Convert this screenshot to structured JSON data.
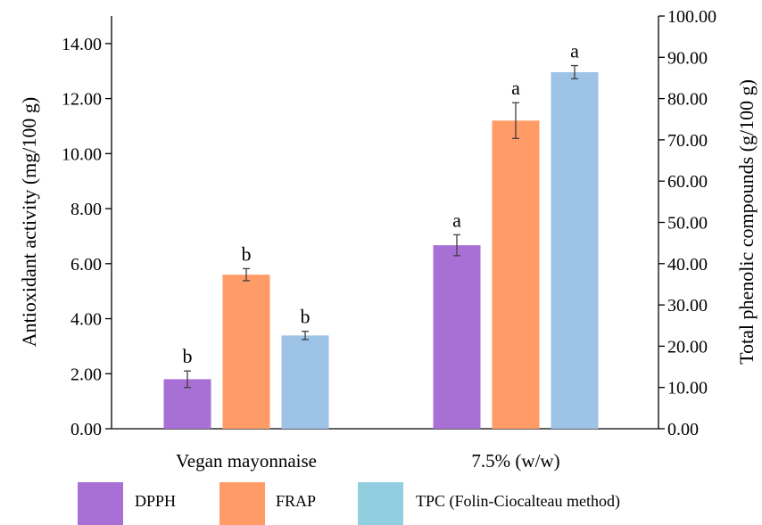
{
  "chart_data": {
    "type": "bar",
    "categories": [
      "Vegan mayonnaise",
      "7.5% (w/w)"
    ],
    "series": [
      {
        "name": "DPPH",
        "values": [
          1.8,
          6.67
        ],
        "errors": [
          0.3,
          0.38
        ],
        "letters": [
          "b",
          "a"
        ],
        "axis": "left",
        "color": "#a86fd4"
      },
      {
        "name": "FRAP",
        "values": [
          5.6,
          11.2
        ],
        "errors": [
          0.22,
          0.65
        ],
        "letters": [
          "b",
          "a"
        ],
        "axis": "left",
        "color": "#ff9b66"
      },
      {
        "name": "TPC (Folin-Ciocalteau method)",
        "values": [
          22.6,
          86.4
        ],
        "errors": [
          1.0,
          1.6
        ],
        "letters": [
          "b",
          "a"
        ],
        "axis": "right",
        "color": "#9dc3e6"
      }
    ],
    "ylabel": "Antioxidant activity (mg/100 g)",
    "ylabel_right": "Total phenolic compounds (g/100 g)",
    "ylim": [
      0,
      15
    ],
    "ylim_right": [
      0,
      100
    ],
    "yticks": [
      "0.00",
      "2.00",
      "4.00",
      "6.00",
      "8.00",
      "10.00",
      "12.00",
      "14.00"
    ],
    "yticks_right": [
      "0.00",
      "10.00",
      "20.00",
      "30.00",
      "40.00",
      "50.00",
      "60.00",
      "70.00",
      "80.00",
      "90.00",
      "100.00"
    ],
    "legend": {
      "position": "bottom",
      "items": [
        {
          "label": "DPPH",
          "color": "#a86fd4"
        },
        {
          "label": "FRAP",
          "color": "#ff9b66"
        },
        {
          "label": "TPC (Folin-Ciocalteau method)",
          "color": "#91cfe0"
        }
      ]
    },
    "grid": false
  }
}
